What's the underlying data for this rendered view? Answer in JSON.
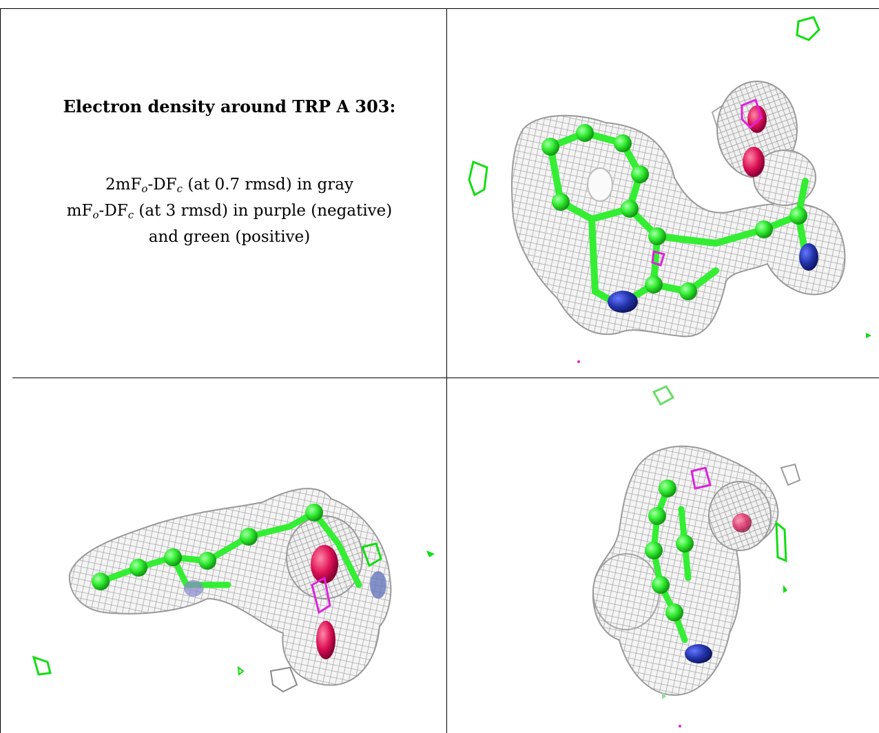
{
  "caption": {
    "title": "Electron density around TRP A 303:",
    "line1_pre": "2mF",
    "line1_sub1": "o",
    "line1_mid": "-DF",
    "line1_sub2": "c",
    "line1_post": " (at 0.7 rmsd) in gray",
    "line2_pre": "mF",
    "line2_sub1": "o",
    "line2_mid": "-DF",
    "line2_sub2": "c",
    "line2_post": " (at 3 rmsd) in purple (negative)",
    "line3": "and green (positive)"
  },
  "colors": {
    "mesh_gray": "#b4b4b4",
    "mesh_dark": "#8a8a8a",
    "carbon_green": "#33ee33",
    "nitrogen_blue": "#2233aa",
    "oxygen_red": "#dd1155",
    "negative_purple": "#dd22dd",
    "positive_green": "#11dd11"
  },
  "panels": [
    {
      "id": "top-right-view",
      "icon": "electron-density-mesh-icon"
    },
    {
      "id": "bottom-left-view",
      "icon": "electron-density-mesh-icon"
    },
    {
      "id": "bottom-right-view",
      "icon": "electron-density-mesh-icon"
    }
  ]
}
